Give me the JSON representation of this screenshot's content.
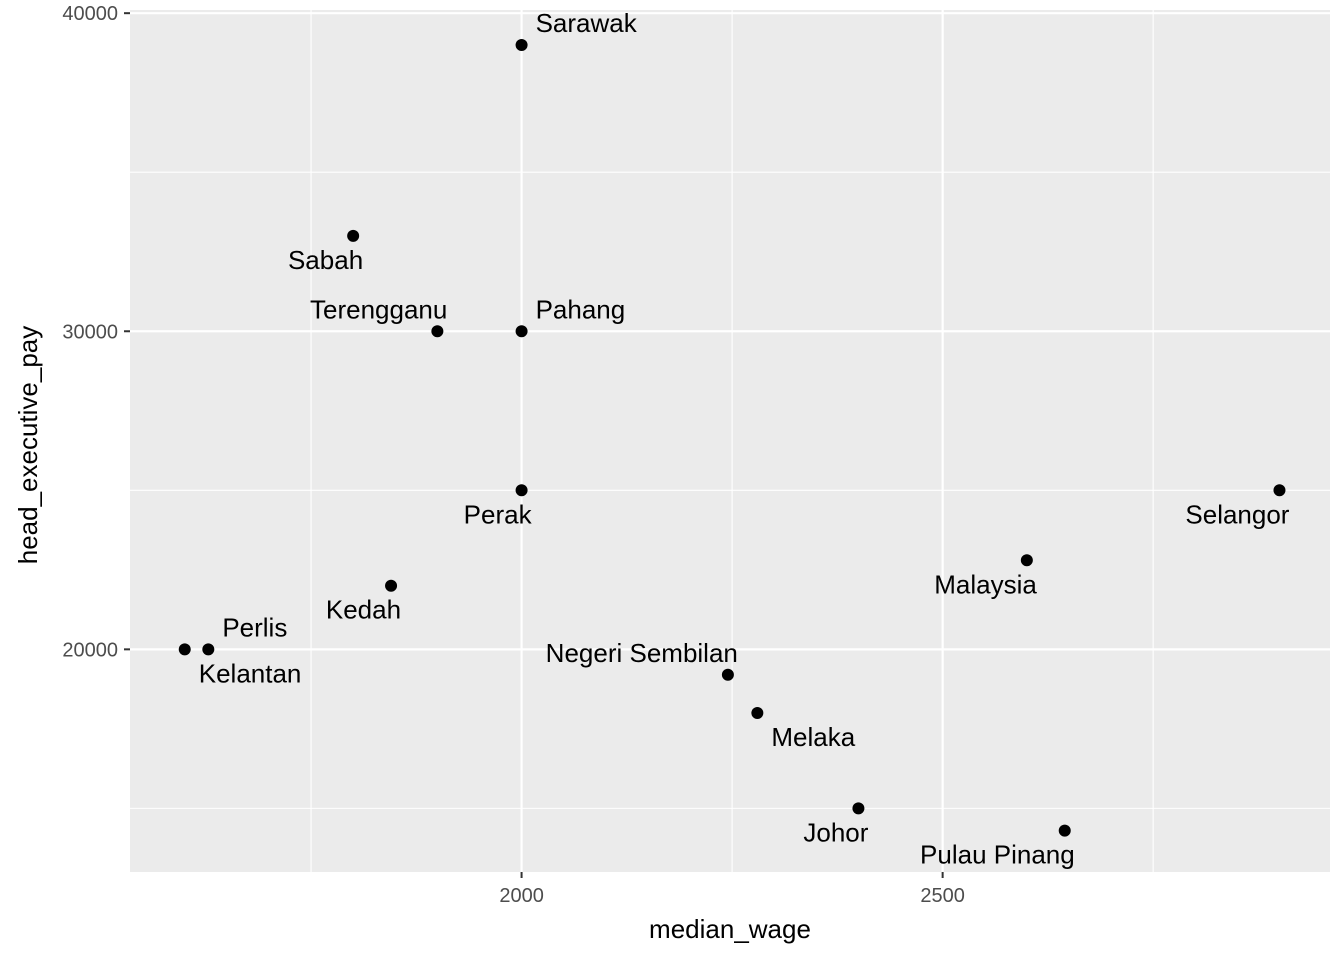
{
  "chart_data": {
    "type": "scatter",
    "xlabel": "median_wage",
    "ylabel": "head_executive_pay",
    "xlim": [
      1535,
      2960
    ],
    "ylim": [
      13000,
      40100
    ],
    "x_ticks": [
      2000,
      2500
    ],
    "x_tick_labels": [
      "2000",
      "2500"
    ],
    "x_minor_ticks": [
      1750,
      2250,
      2750
    ],
    "y_ticks": [
      20000,
      30000,
      40000
    ],
    "y_tick_labels": [
      "20000",
      "30000",
      "40000"
    ],
    "y_minor_ticks": [
      15000,
      25000,
      35000
    ],
    "grid": true,
    "colors": {
      "panel": "#ebebeb",
      "grid": "#ffffff",
      "point": "#000000",
      "text": "#000000",
      "tick": "#4d4d4d"
    },
    "points": [
      {
        "label": "Sarawak",
        "x": 2000,
        "y": 39000,
        "label_pos": "above-right"
      },
      {
        "label": "Sabah",
        "x": 1800,
        "y": 33000,
        "label_pos": "below-left"
      },
      {
        "label": "Terengganu",
        "x": 1900,
        "y": 30000,
        "label_pos": "above-left"
      },
      {
        "label": "Pahang",
        "x": 2000,
        "y": 30000,
        "label_pos": "above-right"
      },
      {
        "label": "Perak",
        "x": 2000,
        "y": 25000,
        "label_pos": "below-left"
      },
      {
        "label": "Selangor",
        "x": 2900,
        "y": 25000,
        "label_pos": "below-left"
      },
      {
        "label": "Malaysia",
        "x": 2600,
        "y": 22800,
        "label_pos": "below-left"
      },
      {
        "label": "Kedah",
        "x": 1845,
        "y": 22000,
        "label_pos": "below-left"
      },
      {
        "label": "Perlis",
        "x": 1628,
        "y": 20000,
        "label_pos": "above-right"
      },
      {
        "label": "Kelantan",
        "x": 1600,
        "y": 20000,
        "label_pos": "below-right"
      },
      {
        "label": "Negeri Sembilan",
        "x": 2245,
        "y": 19200,
        "label_pos": "above-left"
      },
      {
        "label": "Melaka",
        "x": 2280,
        "y": 18000,
        "label_pos": "below-right"
      },
      {
        "label": "Johor",
        "x": 2400,
        "y": 15000,
        "label_pos": "below-left"
      },
      {
        "label": "Pulau Pinang",
        "x": 2645,
        "y": 14300,
        "label_pos": "below-left"
      }
    ]
  }
}
